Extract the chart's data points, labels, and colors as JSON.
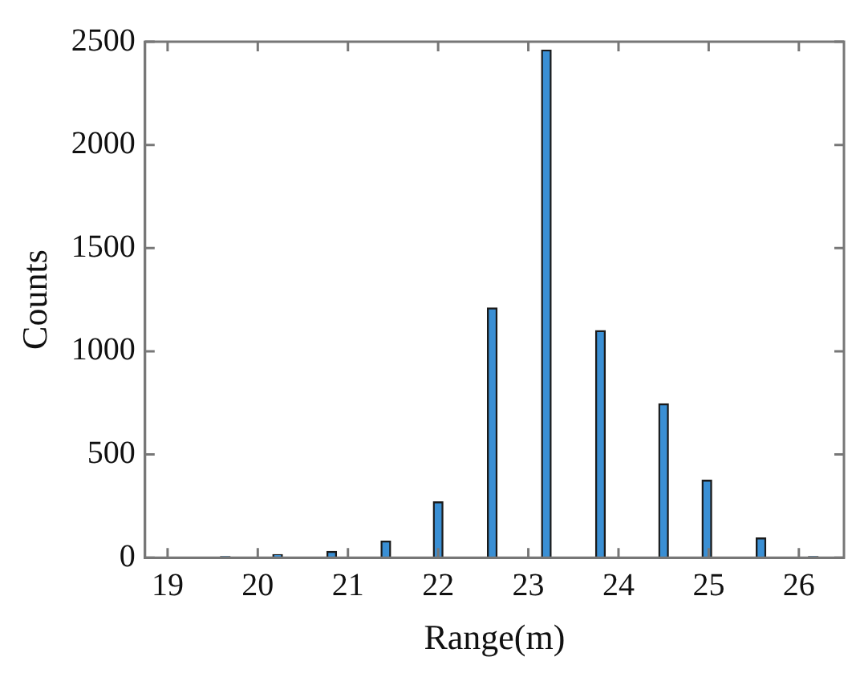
{
  "chart_data": {
    "type": "bar",
    "xlabel": "Range(m)",
    "ylabel": "Counts",
    "x": [
      19.05,
      19.64,
      20.22,
      20.82,
      21.42,
      22.0,
      22.6,
      23.2,
      23.8,
      24.5,
      24.98,
      25.58,
      26.16
    ],
    "series": [
      {
        "color": "#3a8fd4",
        "values": [
          2,
          5,
          15,
          30,
          80,
          270,
          1210,
          2460,
          1100,
          745,
          375,
          95,
          5
        ]
      }
    ],
    "xlim": [
      18.75,
      26.5
    ],
    "xticks": [
      19,
      20,
      21,
      22,
      23,
      24,
      25,
      26
    ],
    "ylim": [
      0,
      2500
    ],
    "yticks": [
      0,
      500,
      1000,
      1500,
      2000,
      2500
    ],
    "grid": false,
    "legend": false
  }
}
